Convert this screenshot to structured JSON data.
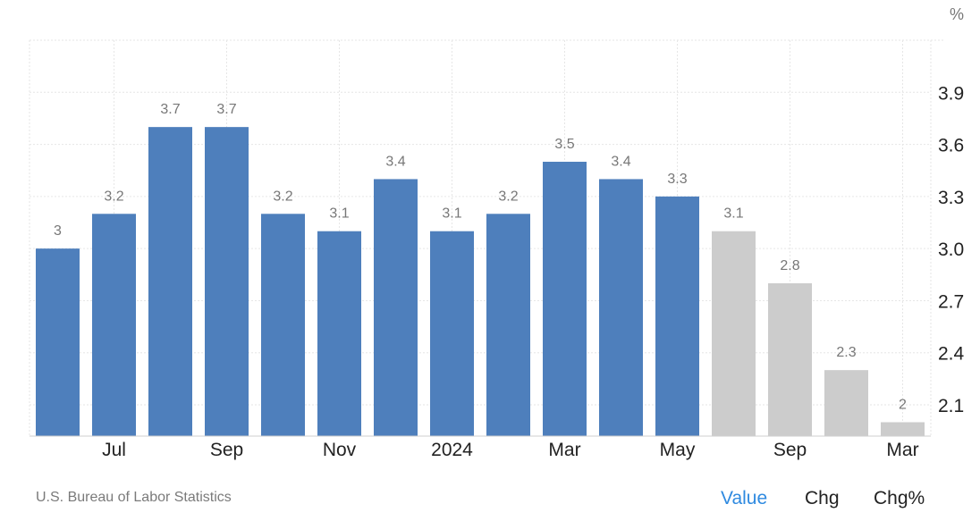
{
  "chart_data": {
    "type": "bar",
    "unit": "%",
    "categories": [
      "",
      "Jul",
      "",
      "Sep",
      "",
      "Nov",
      "",
      "2024",
      "",
      "Mar",
      "",
      "May",
      "",
      "Sep",
      "",
      "Mar"
    ],
    "values": [
      3,
      3.2,
      3.7,
      3.7,
      3.2,
      3.1,
      3.4,
      3.1,
      3.2,
      3.5,
      3.4,
      3.3,
      3.1,
      2.8,
      2.3,
      2
    ],
    "value_labels": [
      "3",
      "3.2",
      "3.7",
      "3.7",
      "3.2",
      "3.1",
      "3.4",
      "3.1",
      "3.2",
      "3.5",
      "3.4",
      "3.3",
      "3.1",
      "2.8",
      "2.3",
      "2"
    ],
    "bar_kind": [
      "actual",
      "actual",
      "actual",
      "actual",
      "actual",
      "actual",
      "actual",
      "actual",
      "actual",
      "actual",
      "actual",
      "actual",
      "forecast",
      "forecast",
      "forecast",
      "forecast"
    ],
    "ylim": [
      1.92,
      4.2
    ],
    "yticks": [
      "2.1",
      "2.4",
      "2.7",
      "3.0",
      "3.3",
      "3.6",
      "3.9"
    ],
    "ytick_values": [
      2.1,
      2.4,
      2.7,
      3.0,
      3.3,
      3.6,
      3.9
    ],
    "grid": true,
    "colors": {
      "actual": "#4e7fbc",
      "forecast": "#cccccc",
      "grid": "#e6e6e6",
      "axis_text": "#222222",
      "label_text": "#777777"
    }
  },
  "source": "U.S. Bureau of Labor Statistics",
  "tabs": [
    {
      "label": "Value",
      "active": true
    },
    {
      "label": "Chg",
      "active": false
    },
    {
      "label": "Chg%",
      "active": false
    }
  ]
}
